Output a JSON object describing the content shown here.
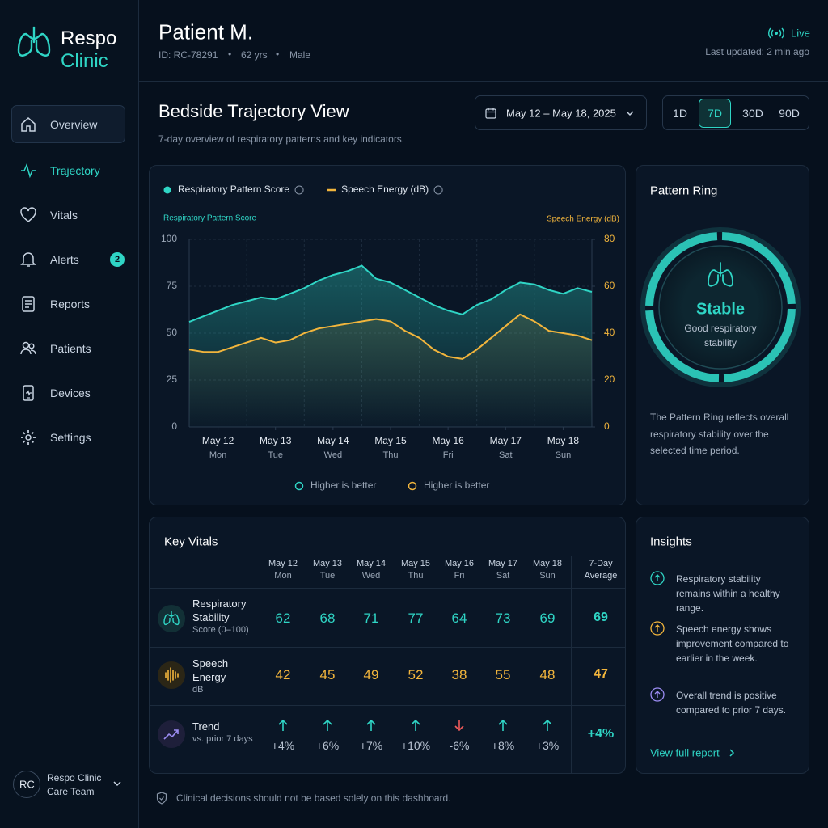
{
  "sidebar": {
    "brand": [
      "Respo",
      "Clinic"
    ],
    "nav": [
      {
        "label": "Overview"
      },
      {
        "label": "Trajectory"
      },
      {
        "label": "Vitals"
      },
      {
        "label": "Alerts",
        "badge": 2
      },
      {
        "label": "Reports"
      },
      {
        "label": "Patients"
      },
      {
        "label": "Devices"
      },
      {
        "label": "Settings"
      }
    ],
    "hovered": "Overview",
    "active": "Trajectory",
    "user": {
      "initials": "RC",
      "name": "Respo Clinic",
      "team": "Care Team"
    }
  },
  "header": {
    "patient": "Patient M.",
    "id": "ID: RC-78291",
    "age": "62 yrs",
    "sex": "Male",
    "status": "Live",
    "updated": "Last updated: 2 min ago"
  },
  "page": {
    "title": "Bedside Trajectory View",
    "subtitle": "7-day overview of respiratory patterns and key indicators.",
    "date_range": "May 12 – May 18, 2025",
    "ranges": [
      "1D",
      "7D",
      "30D",
      "90D"
    ],
    "selected_range": "7D"
  },
  "chart_data": {
    "type": "line",
    "categories": [
      null,
      null,
      "May 12",
      null,
      null,
      null,
      "May 13",
      null,
      null,
      null,
      "May 14",
      null,
      null,
      null,
      "May 15",
      null,
      null,
      null,
      "May 16",
      null,
      null,
      null,
      "May 17",
      null,
      null,
      null,
      "May 18",
      null,
      null
    ],
    "category_days": [
      null,
      null,
      "Mon",
      null,
      null,
      null,
      "Tue",
      null,
      null,
      null,
      "Wed",
      null,
      null,
      null,
      "Thu",
      null,
      null,
      null,
      "Fri",
      null,
      null,
      null,
      "Sat",
      null,
      null,
      null,
      "Sun",
      null,
      null
    ],
    "series": [
      {
        "name": "Respiratory Pattern Score",
        "color": "#2fd5c5",
        "values": [
          56,
          59,
          62,
          65,
          67,
          69,
          68,
          71,
          74,
          78,
          81,
          83,
          86,
          79,
          77,
          73,
          69,
          65,
          62,
          60,
          65,
          68,
          73,
          77,
          76,
          73,
          71,
          74,
          72
        ]
      },
      {
        "name": "Speech Energy (dB)",
        "color": "#f2b53c",
        "axis": "y2",
        "values": [
          33,
          32,
          32,
          34,
          36,
          38,
          36,
          37,
          40,
          42,
          43,
          44,
          45,
          46,
          45,
          41,
          38,
          33,
          30,
          29,
          33,
          38,
          43,
          48,
          45,
          41,
          40,
          39,
          37
        ]
      }
    ],
    "y_label": "Respiratory Pattern Score",
    "y2_label": "Speech Energy (dB)",
    "ylim": [
      0,
      100
    ],
    "yticks": [
      0,
      25,
      50,
      75,
      100
    ],
    "y2lim": [
      0,
      80
    ],
    "y2ticks": [
      0,
      20,
      40,
      60,
      80
    ],
    "grid": true,
    "annotations": [
      "Higher is better",
      "Higher is better"
    ]
  },
  "pattern_ring": {
    "title": "Pattern Ring",
    "status": "Stable",
    "status_detail": "Good respiratory stability",
    "description": "The Pattern Ring reflects overall respiratory stability over the selected time period."
  },
  "key_vitals": {
    "title": "Key Vitals",
    "columns": [
      {
        "date": "May 12",
        "day": "Mon"
      },
      {
        "date": "May 13",
        "day": "Tue"
      },
      {
        "date": "May 14",
        "day": "Wed"
      },
      {
        "date": "May 15",
        "day": "Thu"
      },
      {
        "date": "May 16",
        "day": "Fri"
      },
      {
        "date": "May 17",
        "day": "Sat"
      },
      {
        "date": "May 18",
        "day": "Sun"
      }
    ],
    "average_header": "7-Day Average",
    "rows": [
      {
        "name": "Respiratory Stability",
        "unit": "Score (0–100)",
        "color": "#2fd5c5",
        "values": [
          62,
          68,
          71,
          77,
          64,
          73,
          69
        ],
        "average": 69
      },
      {
        "name": "Speech Energy",
        "unit": "dB",
        "color": "#f2b53c",
        "values": [
          42,
          45,
          49,
          52,
          38,
          55,
          48
        ],
        "average": 47
      },
      {
        "name": "Trend",
        "unit": "vs. prior 7 days",
        "color": "#b8c3d2",
        "values": [
          "+4%",
          "+6%",
          "+7%",
          "+10%",
          "-6%",
          "+8%",
          "+3%"
        ],
        "average": "+4%"
      }
    ]
  },
  "insights": {
    "title": "Insights",
    "items": [
      {
        "text": "Respiratory stability remains within a healthy range.",
        "color": "#2fd5c5"
      },
      {
        "text": "Speech energy shows improvement compared to earlier in the week.",
        "color": "#f2b53c"
      },
      {
        "text": "Overall trend is positive compared to prior 7 days.",
        "color": "#9b8cf2"
      }
    ],
    "link": "View full report"
  },
  "disclaimer": "Clinical decisions should not be based solely on this dashboard."
}
